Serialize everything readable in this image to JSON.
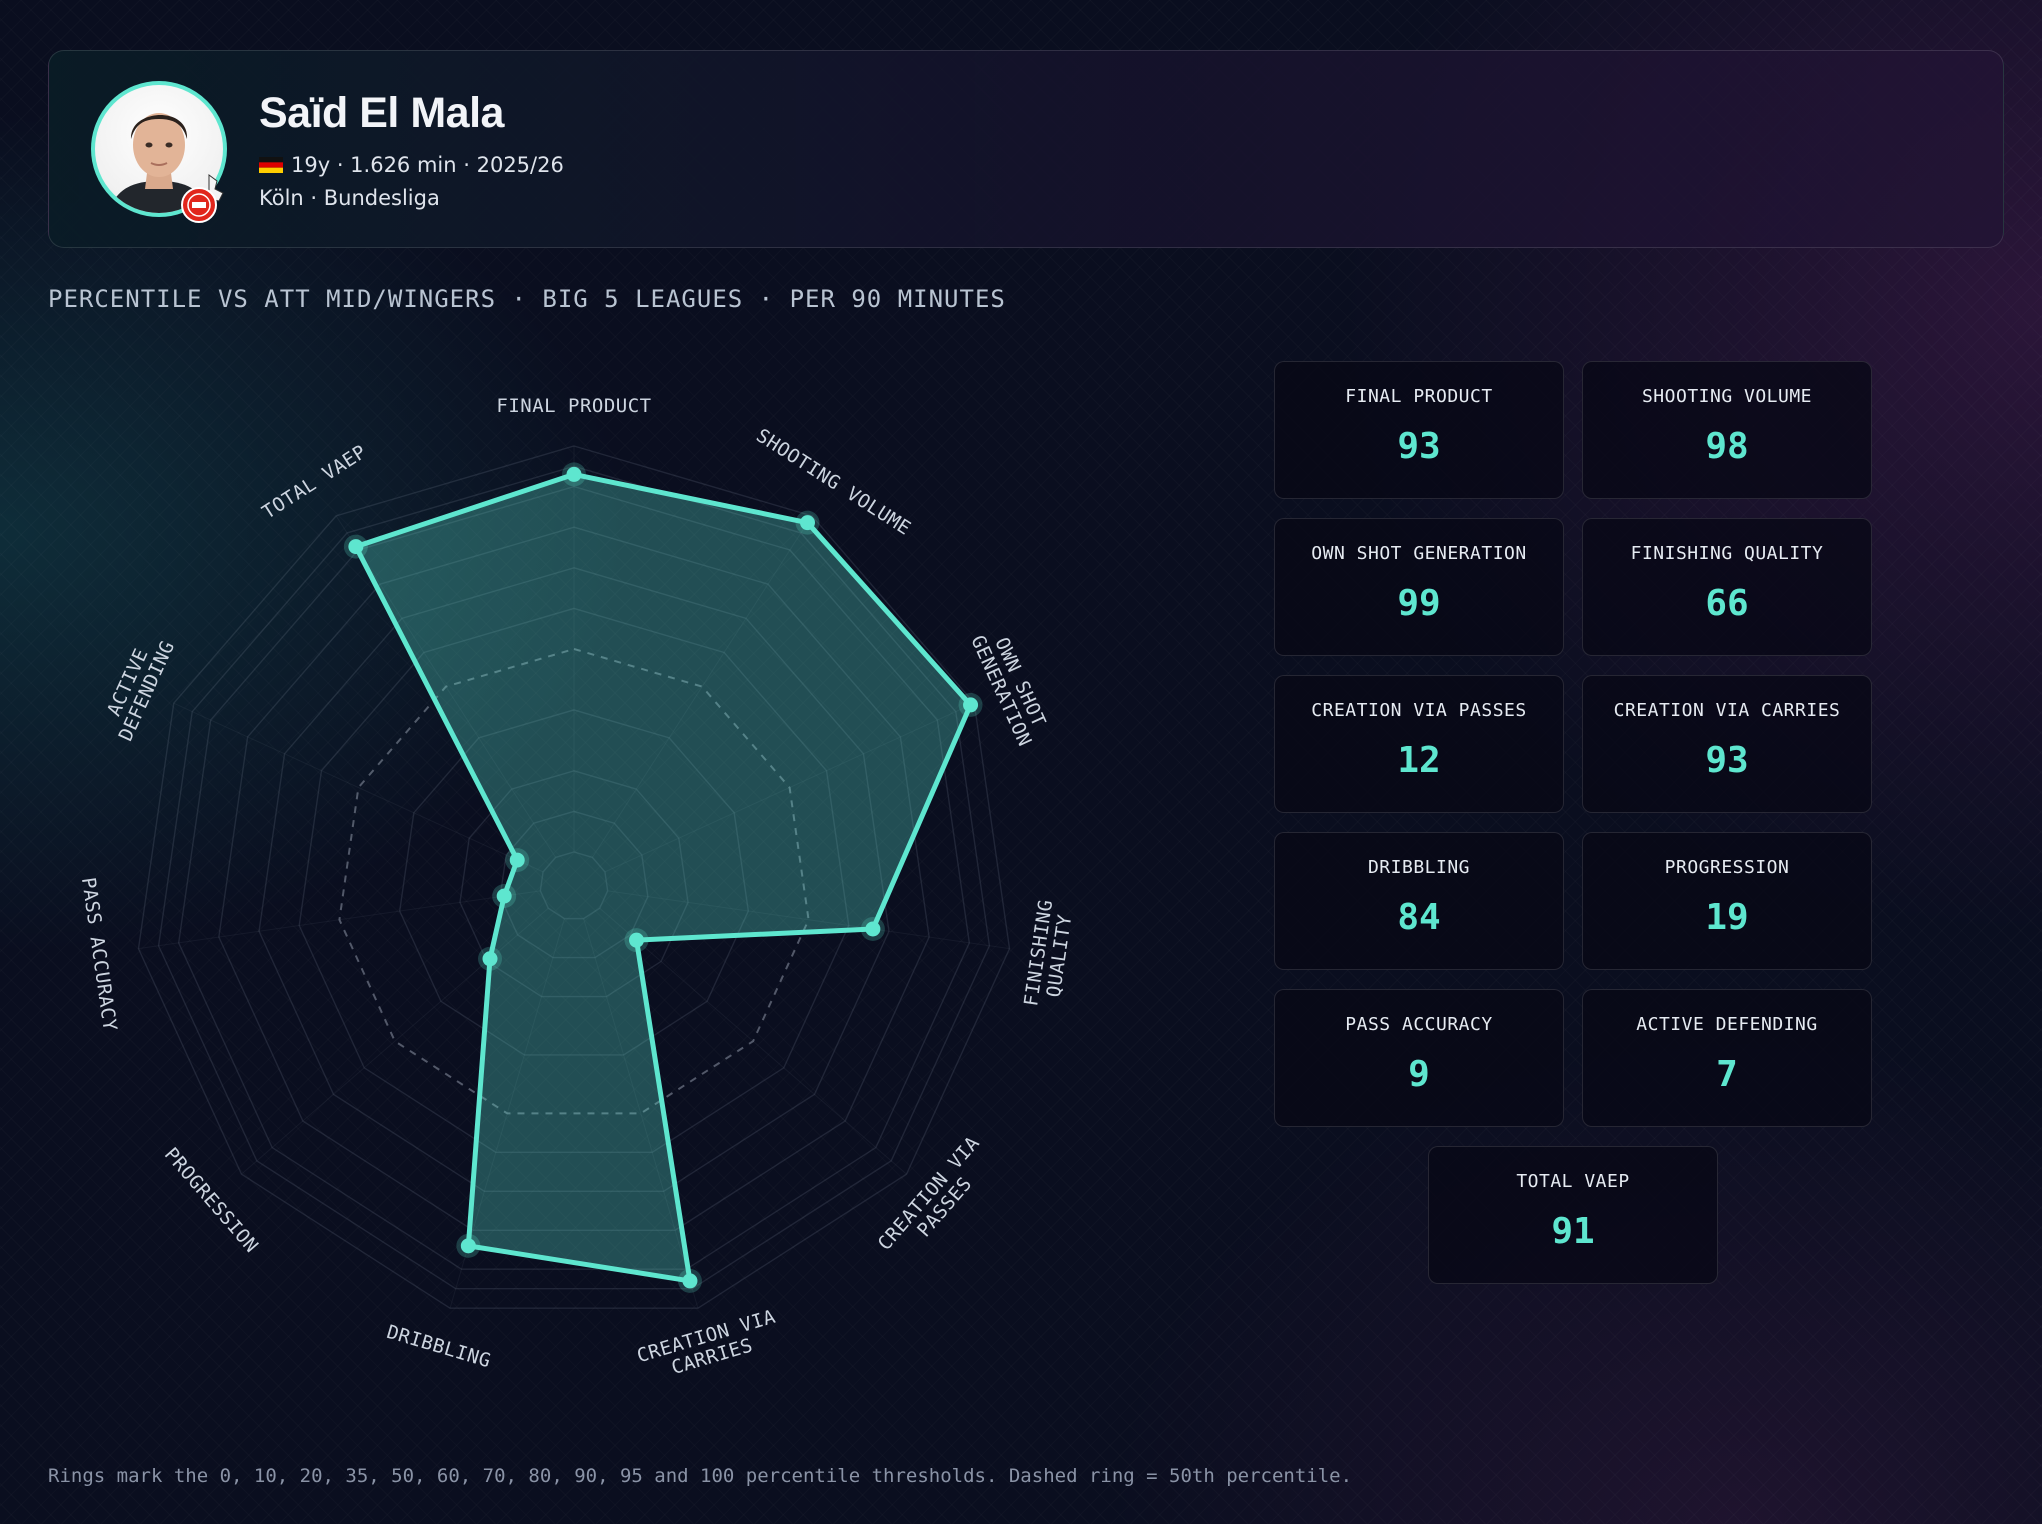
{
  "player": {
    "name": "Saïd El Mala",
    "meta": "19y · 1.626 min · 2025/26",
    "club_league": "Köln · Bundesliga"
  },
  "colors": {
    "accent": "#5ee6cf",
    "background": "#0a0e1f"
  },
  "icons": {
    "flag": "germany-flag-icon",
    "club": "koln-club-crest-icon",
    "avatar": "player-portrait"
  },
  "subtitle": "PERCENTILE VS ATT MID/WINGERS · BIG 5 LEAGUES · PER 90 MINUTES",
  "footnote": "Rings mark the 0, 10, 20, 35, 50, 60, 70, 80, 90, 95 and 100 percentile thresholds. Dashed ring = 50th percentile.",
  "chart_data": {
    "type": "radar",
    "title": "",
    "value_range": [
      0,
      100
    ],
    "rings": [
      0,
      10,
      20,
      35,
      50,
      60,
      70,
      80,
      90,
      95,
      100
    ],
    "highlight_ring": 50,
    "axes": [
      {
        "label": "FINAL PRODUCT",
        "label_lines": [
          "FINAL PRODUCT"
        ],
        "value": 93
      },
      {
        "label": "SHOOTING VOLUME",
        "label_lines": [
          "SHOOTING VOLUME"
        ],
        "value": 98
      },
      {
        "label": "OWN SHOT GENERATION",
        "label_lines": [
          "OWN SHOT",
          "GENERATION"
        ],
        "value": 99
      },
      {
        "label": "FINISHING QUALITY",
        "label_lines": [
          "FINISHING",
          "QUALITY"
        ],
        "value": 66
      },
      {
        "label": "CREATION VIA PASSES",
        "label_lines": [
          "CREATION VIA",
          "PASSES"
        ],
        "value": 12
      },
      {
        "label": "CREATION VIA CARRIES",
        "label_lines": [
          "CREATION VIA",
          "CARRIES"
        ],
        "value": 93
      },
      {
        "label": "DRIBBLING",
        "label_lines": [
          "DRIBBLING"
        ],
        "value": 84
      },
      {
        "label": "PROGRESSION",
        "label_lines": [
          "PROGRESSION"
        ],
        "value": 19
      },
      {
        "label": "PASS ACCURACY",
        "label_lines": [
          "PASS ACCURACY"
        ],
        "value": 9
      },
      {
        "label": "ACTIVE DEFENDING",
        "label_lines": [
          "ACTIVE",
          "DEFENDING"
        ],
        "value": 7
      },
      {
        "label": "TOTAL VAEP",
        "label_lines": [
          "TOTAL VAEP"
        ],
        "value": 91
      }
    ]
  },
  "stats": [
    {
      "label": "FINAL PRODUCT",
      "value": "93"
    },
    {
      "label": "SHOOTING VOLUME",
      "value": "98"
    },
    {
      "label": "OWN SHOT GENERATION",
      "value": "99"
    },
    {
      "label": "FINISHING QUALITY",
      "value": "66"
    },
    {
      "label": "CREATION VIA PASSES",
      "value": "12"
    },
    {
      "label": "CREATION VIA CARRIES",
      "value": "93"
    },
    {
      "label": "DRIBBLING",
      "value": "84"
    },
    {
      "label": "PROGRESSION",
      "value": "19"
    },
    {
      "label": "PASS ACCURACY",
      "value": "9"
    },
    {
      "label": "ACTIVE DEFENDING",
      "value": "7"
    },
    {
      "label": "TOTAL VAEP",
      "value": "91"
    }
  ]
}
